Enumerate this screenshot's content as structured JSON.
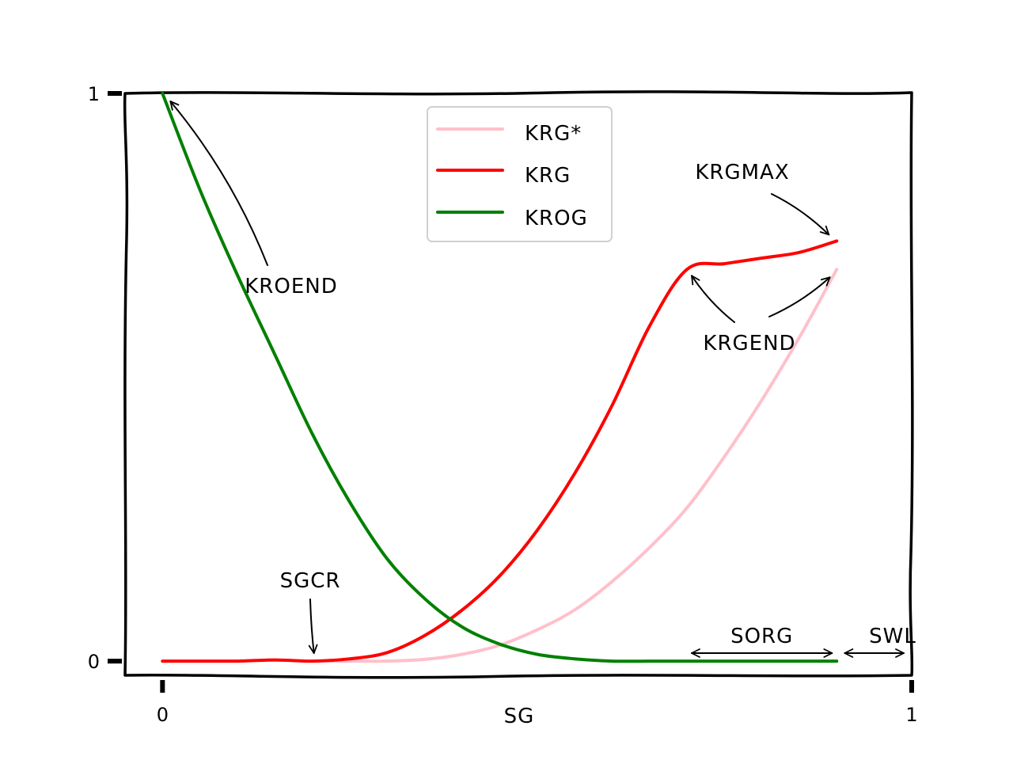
{
  "chart_data": {
    "type": "line",
    "title": "",
    "xlabel": "SG",
    "ylabel": "",
    "xlim": [
      -0.05,
      1.0
    ],
    "ylim": [
      -0.025,
      1.0
    ],
    "xticks": [
      {
        "value": 0,
        "label": "0"
      },
      {
        "value": 1,
        "label": "1"
      }
    ],
    "yticks": [
      {
        "value": 0,
        "label": "0"
      },
      {
        "value": 1,
        "label": "1"
      }
    ],
    "legend_position": "top-center",
    "grid": false,
    "series": [
      {
        "name": "KRG*",
        "color": "#ffc0cb",
        "x": [
          0.2,
          0.25,
          0.3,
          0.35,
          0.4,
          0.45,
          0.5,
          0.55,
          0.6,
          0.65,
          0.7,
          0.75,
          0.8,
          0.85,
          0.9
        ],
        "y": [
          0.0,
          0.0,
          0.0,
          0.003,
          0.012,
          0.028,
          0.055,
          0.09,
          0.14,
          0.2,
          0.27,
          0.36,
          0.46,
          0.57,
          0.69
        ]
      },
      {
        "name": "KRG",
        "color": "#ff0000",
        "x": [
          0.0,
          0.05,
          0.1,
          0.15,
          0.2,
          0.25,
          0.3,
          0.35,
          0.4,
          0.45,
          0.5,
          0.55,
          0.6,
          0.65,
          0.7,
          0.75,
          0.8,
          0.85,
          0.9
        ],
        "y": [
          0.0,
          0.0,
          0.0,
          0.002,
          0.0,
          0.004,
          0.015,
          0.045,
          0.09,
          0.15,
          0.23,
          0.33,
          0.45,
          0.59,
          0.69,
          0.7,
          0.71,
          0.72,
          0.74
        ]
      },
      {
        "name": "KROG",
        "color": "#008000",
        "x": [
          0.0,
          0.05,
          0.1,
          0.15,
          0.2,
          0.25,
          0.3,
          0.35,
          0.4,
          0.45,
          0.5,
          0.55,
          0.6,
          0.65,
          0.7,
          0.75,
          0.8,
          0.85,
          0.9
        ],
        "y": [
          1.0,
          0.83,
          0.68,
          0.54,
          0.4,
          0.28,
          0.18,
          0.11,
          0.06,
          0.03,
          0.012,
          0.004,
          0.0,
          0.0,
          0.0,
          0.0,
          0.0,
          0.0,
          0.0
        ]
      }
    ],
    "annotations": [
      {
        "text": "KROEND",
        "points_to": {
          "x": 0.0,
          "y": 1.0
        }
      },
      {
        "text": "KRGMAX",
        "points_to": {
          "x": 0.9,
          "y": 0.74
        }
      },
      {
        "text": "KRGEND",
        "points_to": [
          {
            "x": 0.7,
            "y": 0.69
          },
          {
            "x": 0.895,
            "y": 0.69
          }
        ]
      },
      {
        "text": "SGCR",
        "points_to": {
          "x": 0.2,
          "y": 0.0
        }
      },
      {
        "text": "SORG",
        "span": [
          0.7,
          0.9
        ]
      },
      {
        "text": "SWL",
        "span": [
          0.9,
          1.0
        ]
      }
    ]
  }
}
